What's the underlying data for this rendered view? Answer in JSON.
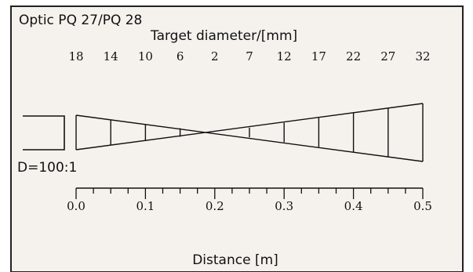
{
  "title": "Optic PQ 27/PQ 28",
  "target_label": "Target diameter/[mm]",
  "ratio_label": "D=100:1",
  "xlabel": "Distance [m]",
  "colors": {
    "panel_bg": "#f5f2ed",
    "ink": "#111111"
  },
  "chart_data": {
    "type": "line",
    "title": "Optic PQ 27/PQ 28",
    "xlabel": "Distance [m]",
    "x_ticks": [
      "0.0",
      "0.1",
      "0.2",
      "0.3",
      "0.4",
      "0.5"
    ],
    "x_range": [
      0,
      0.5
    ],
    "target_positions_m": [
      0,
      0.05,
      0.1,
      0.15,
      0.2,
      0.25,
      0.3,
      0.35,
      0.4,
      0.45,
      0.5
    ],
    "target_diameters_mm": [
      "18",
      "14",
      "10",
      "6",
      "2",
      "7",
      "12",
      "17",
      "22",
      "27",
      "32"
    ],
    "ratio": "D=100:1",
    "focus_distance_m": 0.2
  }
}
